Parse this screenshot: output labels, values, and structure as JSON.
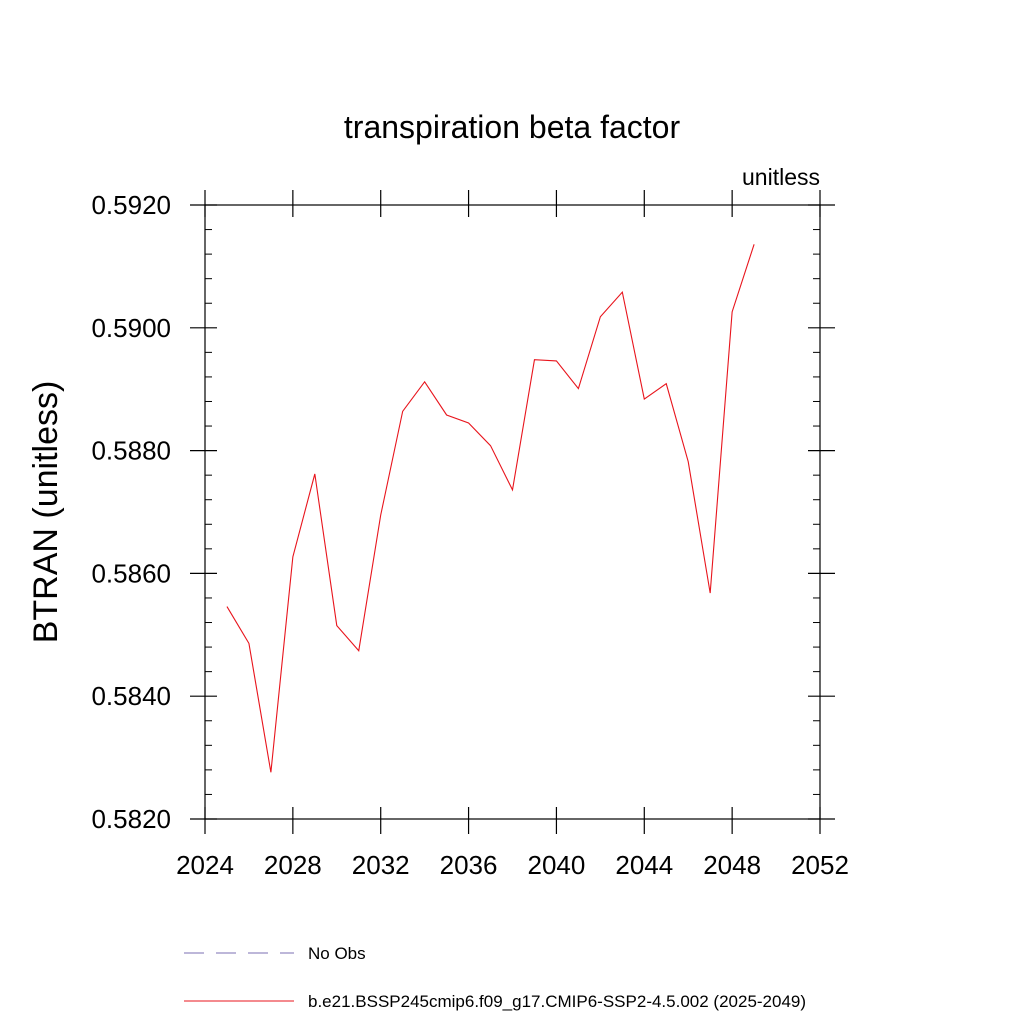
{
  "chart_data": {
    "type": "line",
    "title": "transpiration beta factor",
    "units_label": "unitless",
    "ylabel": "BTRAN  (unitless)",
    "xlabel": "",
    "xlim": [
      2024,
      2052
    ],
    "ylim": [
      0.582,
      0.592
    ],
    "x_ticks": [
      2024,
      2028,
      2032,
      2036,
      2040,
      2044,
      2048,
      2052
    ],
    "x_tick_labels": [
      "2024",
      "2028",
      "2032",
      "2036",
      "2040",
      "2044",
      "2048",
      "2052"
    ],
    "y_ticks": [
      0.582,
      0.584,
      0.586,
      0.588,
      0.59,
      0.592
    ],
    "y_tick_labels": [
      "0.5820",
      "0.5840",
      "0.5860",
      "0.5880",
      "0.5900",
      "0.5920"
    ],
    "grid": false,
    "legend_position": "bottom",
    "series": [
      {
        "name": "No Obs",
        "color": "#7b6fb3",
        "style": "dashed",
        "x": [],
        "values": []
      },
      {
        "name": "b.e21.BSSP245cmip6.f09_g17.CMIP6-SSP2-4.5.002 (2025-2049)",
        "color": "#e8141c",
        "style": "solid",
        "x": [
          2025,
          2026,
          2027,
          2028,
          2029,
          2030,
          2031,
          2032,
          2033,
          2034,
          2035,
          2036,
          2037,
          2038,
          2039,
          2040,
          2041,
          2042,
          2043,
          2044,
          2045,
          2046,
          2047,
          2048,
          2049
        ],
        "values": [
          0.58546,
          0.58486,
          0.58276,
          0.58627,
          0.58762,
          0.58515,
          0.58474,
          0.58695,
          0.58864,
          0.58912,
          0.58858,
          0.58845,
          0.58808,
          0.58736,
          0.58948,
          0.58946,
          0.58901,
          0.59018,
          0.59058,
          0.58884,
          0.58909,
          0.58782,
          0.58568,
          0.59026,
          0.59136
        ]
      }
    ]
  }
}
